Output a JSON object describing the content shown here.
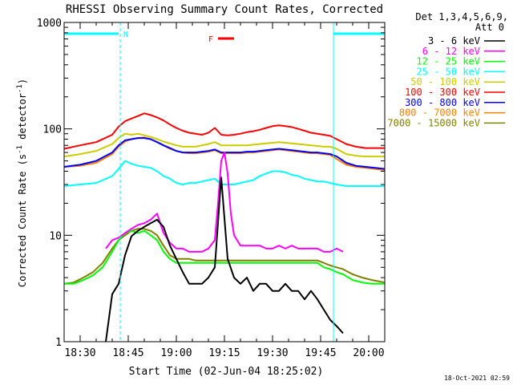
{
  "chart_data": {
    "type": "line",
    "title": "RHESSI Observing Summary Count Rates, Corrected",
    "xlabel": "Start Time (02-Jun-04 18:25:02)",
    "ylabel": "Corrected Count Rate (s",
    "ylabel_sup1": "-1",
    "ylabel_mid": " detector",
    "ylabel_sup2": "-1",
    "ylabel_end": ")",
    "y_scale": "log",
    "ylim": [
      1,
      1000
    ],
    "y_ticks": [
      {
        "value": 1,
        "label": "1"
      },
      {
        "value": 10,
        "label": "10"
      },
      {
        "value": 100,
        "label": "100"
      },
      {
        "value": 1000,
        "label": "1000"
      }
    ],
    "xlim_minutes_after_start": [
      0,
      100
    ],
    "x_ticks": [
      {
        "value": 5,
        "label": "18:30"
      },
      {
        "value": 20,
        "label": "18:45"
      },
      {
        "value": 35,
        "label": "19:00"
      },
      {
        "value": 50,
        "label": "19:15"
      },
      {
        "value": 65,
        "label": "19:30"
      },
      {
        "value": 80,
        "label": "19:45"
      },
      {
        "value": 95,
        "label": "20:00"
      }
    ],
    "legend_header": [
      "Det 1,3,4,5,6,9,",
      "Att 0"
    ],
    "legend_placement": "right",
    "footer_timestamp": "18-Oct-2021 02:59",
    "flags": [
      {
        "label": "N",
        "color": "#00ffff",
        "segments": [
          [
            0,
            17
          ],
          [
            84,
            100
          ]
        ]
      },
      {
        "label": "F",
        "color": "#ff0000",
        "segments": [
          [
            48,
            53
          ]
        ]
      }
    ],
    "vertical_markers": [
      {
        "value": 0,
        "style": "solid",
        "color": "#00ffff"
      },
      {
        "value": 17.5,
        "style": "dashed",
        "color": "#00ffff"
      },
      {
        "value": 84,
        "style": "solid",
        "color": "#00ffff"
      },
      {
        "value": 100,
        "style": "dashed",
        "color": "#00ffff"
      }
    ],
    "series": [
      {
        "name": "3 - 6 keV",
        "color": "#000000",
        "x": [
          13,
          15,
          17,
          19,
          21,
          23,
          25,
          27,
          29,
          31,
          33,
          35,
          37,
          39,
          41,
          43,
          45,
          47,
          49,
          51,
          53,
          55,
          57,
          59,
          61,
          63,
          65,
          67,
          69,
          71,
          73,
          75,
          77,
          79,
          81,
          83,
          85,
          87
        ],
        "values": [
          1.0,
          2.8,
          3.5,
          6.5,
          9.8,
          11,
          12,
          13,
          14,
          12,
          8,
          6,
          4.5,
          3.5,
          3.5,
          3.5,
          4,
          5,
          35,
          6,
          4,
          3.5,
          4,
          3,
          3.5,
          3.5,
          3,
          3,
          3.5,
          3,
          3,
          2.5,
          3,
          2.5,
          2,
          1.6,
          1.4,
          1.2
        ]
      },
      {
        "name": "6 - 12 keV",
        "color": "#ff00ff",
        "x": [
          13,
          15,
          17,
          19,
          21,
          23,
          25,
          27,
          29,
          31,
          33,
          35,
          37,
          39,
          41,
          43,
          45,
          47,
          48,
          49,
          50,
          51,
          52,
          53,
          55,
          57,
          59,
          61,
          63,
          65,
          67,
          69,
          71,
          73,
          75,
          77,
          79,
          81,
          83,
          85,
          87
        ],
        "values": [
          7.5,
          9,
          9.5,
          10.5,
          11.5,
          12.5,
          13,
          14,
          16,
          10.5,
          8.5,
          7.5,
          7.5,
          7,
          7,
          7,
          7.5,
          9,
          20,
          50,
          60,
          38,
          16,
          10,
          8,
          8,
          8,
          8,
          7.5,
          7.5,
          8,
          7.5,
          8,
          7.5,
          7.5,
          7.5,
          7.5,
          7,
          7,
          7.5,
          7
        ]
      },
      {
        "name": "12 - 25 keV",
        "color": "#00ff00",
        "x": [
          0,
          3,
          6,
          9,
          12,
          15,
          17,
          19,
          21,
          23,
          25,
          27,
          29,
          31,
          33,
          35,
          37,
          39,
          41,
          43,
          45,
          47,
          49,
          51,
          53,
          55,
          57,
          59,
          61,
          63,
          65,
          67,
          69,
          71,
          73,
          75,
          77,
          79,
          81,
          83,
          85,
          87,
          90,
          93,
          96,
          100
        ],
        "values": [
          3.5,
          3.5,
          3.8,
          4.2,
          5,
          7,
          9,
          10.5,
          11,
          10.5,
          11,
          10,
          9,
          7,
          6,
          5.5,
          5.5,
          5.5,
          5.5,
          5.5,
          5.5,
          5.5,
          5.5,
          5.5,
          5.5,
          5.5,
          5.5,
          5.5,
          5.5,
          5.5,
          5.5,
          5.5,
          5.5,
          5.5,
          5.5,
          5.5,
          5.5,
          5.5,
          5,
          4.8,
          4.5,
          4.3,
          3.8,
          3.6,
          3.5,
          3.5
        ]
      },
      {
        "name": "25 - 50 keV",
        "color": "#00ffff",
        "x": [
          0,
          5,
          10,
          15,
          17,
          19,
          21,
          23,
          25,
          27,
          29,
          31,
          33,
          35,
          37,
          39,
          41,
          43,
          45,
          47,
          49,
          51,
          53,
          55,
          57,
          59,
          61,
          63,
          65,
          67,
          69,
          71,
          73,
          75,
          77,
          79,
          81,
          83,
          85,
          88,
          91,
          94,
          97,
          100
        ],
        "values": [
          29,
          30,
          31,
          36,
          42,
          50,
          47,
          45,
          44,
          43,
          40,
          36,
          34,
          31,
          30,
          31,
          31,
          32,
          33,
          34,
          30,
          30,
          30,
          31,
          32,
          33,
          36,
          38,
          40,
          40,
          39,
          37,
          36,
          34,
          33,
          32,
          32,
          31,
          30,
          29,
          29,
          29,
          29,
          29
        ]
      },
      {
        "name": "50 - 100 keV",
        "color": "#cccc00",
        "x": [
          0,
          5,
          10,
          15,
          17,
          19,
          21,
          23,
          25,
          27,
          29,
          31,
          33,
          35,
          37,
          39,
          41,
          43,
          45,
          47,
          49,
          51,
          53,
          55,
          57,
          59,
          61,
          63,
          65,
          67,
          69,
          71,
          73,
          75,
          77,
          79,
          81,
          83,
          85,
          88,
          91,
          94,
          97,
          100
        ],
        "values": [
          55,
          58,
          62,
          72,
          82,
          90,
          88,
          90,
          87,
          84,
          80,
          76,
          73,
          70,
          68,
          68,
          68,
          70,
          72,
          75,
          70,
          70,
          70,
          70,
          70,
          71,
          72,
          73,
          74,
          75,
          74,
          73,
          72,
          71,
          70,
          69,
          68,
          68,
          65,
          58,
          56,
          55,
          55,
          55
        ]
      },
      {
        "name": "100 - 300 keV",
        "color": "#ff0000",
        "x": [
          0,
          5,
          10,
          15,
          17,
          19,
          21,
          23,
          25,
          27,
          29,
          31,
          33,
          35,
          37,
          39,
          41,
          43,
          45,
          47,
          49,
          51,
          53,
          55,
          57,
          59,
          61,
          63,
          65,
          67,
          69,
          71,
          73,
          75,
          77,
          79,
          81,
          83,
          85,
          88,
          91,
          94,
          97,
          100
        ],
        "values": [
          65,
          70,
          75,
          88,
          105,
          118,
          125,
          132,
          140,
          135,
          128,
          120,
          110,
          102,
          96,
          92,
          90,
          88,
          92,
          102,
          88,
          87,
          88,
          90,
          93,
          95,
          98,
          102,
          106,
          108,
          106,
          104,
          100,
          96,
          92,
          90,
          88,
          86,
          80,
          72,
          68,
          66,
          66,
          66
        ]
      },
      {
        "name": "300 - 800 keV",
        "color": "#0000ff",
        "x": [
          0,
          5,
          10,
          15,
          17,
          19,
          21,
          23,
          25,
          27,
          29,
          31,
          33,
          35,
          37,
          39,
          41,
          43,
          45,
          47,
          49,
          51,
          53,
          55,
          57,
          59,
          61,
          63,
          65,
          67,
          69,
          71,
          73,
          75,
          77,
          79,
          81,
          83,
          85,
          88,
          91,
          94,
          97,
          100
        ],
        "values": [
          44,
          46,
          50,
          60,
          70,
          78,
          80,
          82,
          82,
          80,
          75,
          70,
          66,
          62,
          60,
          60,
          60,
          61,
          62,
          64,
          60,
          60,
          60,
          60,
          61,
          61,
          62,
          63,
          64,
          65,
          64,
          63,
          62,
          61,
          60,
          60,
          59,
          58,
          55,
          48,
          45,
          44,
          43,
          42
        ]
      },
      {
        "name": "800 - 7000 keV",
        "color": "#ff8000",
        "x": [
          0,
          5,
          10,
          15,
          17,
          19,
          21,
          23,
          25,
          27,
          29,
          31,
          33,
          35,
          37,
          39,
          41,
          43,
          45,
          47,
          49,
          51,
          53,
          55,
          57,
          59,
          61,
          63,
          65,
          67,
          69,
          71,
          73,
          75,
          77,
          79,
          81,
          83,
          85,
          88,
          91,
          94,
          97,
          100
        ],
        "values": [
          44,
          45,
          48,
          58,
          68,
          76,
          80,
          82,
          83,
          80,
          75,
          70,
          65,
          62,
          60,
          59,
          59,
          60,
          61,
          63,
          59,
          59,
          59,
          59,
          60,
          60,
          61,
          62,
          63,
          64,
          63,
          62,
          61,
          60,
          59,
          59,
          58,
          57,
          52,
          46,
          44,
          43,
          42,
          41
        ]
      },
      {
        "name": "7000 - 15000 keV",
        "color": "#808000",
        "x": [
          0,
          3,
          6,
          9,
          12,
          15,
          17,
          19,
          21,
          23,
          25,
          27,
          29,
          31,
          33,
          35,
          37,
          39,
          41,
          43,
          45,
          47,
          49,
          51,
          53,
          55,
          57,
          59,
          61,
          63,
          65,
          67,
          69,
          71,
          73,
          75,
          77,
          79,
          81,
          83,
          85,
          87,
          90,
          93,
          96,
          100
        ],
        "values": [
          3.5,
          3.6,
          4,
          4.5,
          5.5,
          7.5,
          9,
          10,
          11,
          11.5,
          11.5,
          11,
          10,
          8,
          6.5,
          6,
          6,
          6,
          5.8,
          5.8,
          5.8,
          5.8,
          5.8,
          5.8,
          5.8,
          5.8,
          5.8,
          5.8,
          5.8,
          5.8,
          5.8,
          5.8,
          5.8,
          5.8,
          5.8,
          5.8,
          5.8,
          5.8,
          5.5,
          5.2,
          5,
          4.8,
          4.3,
          4,
          3.8,
          3.6
        ]
      }
    ]
  }
}
